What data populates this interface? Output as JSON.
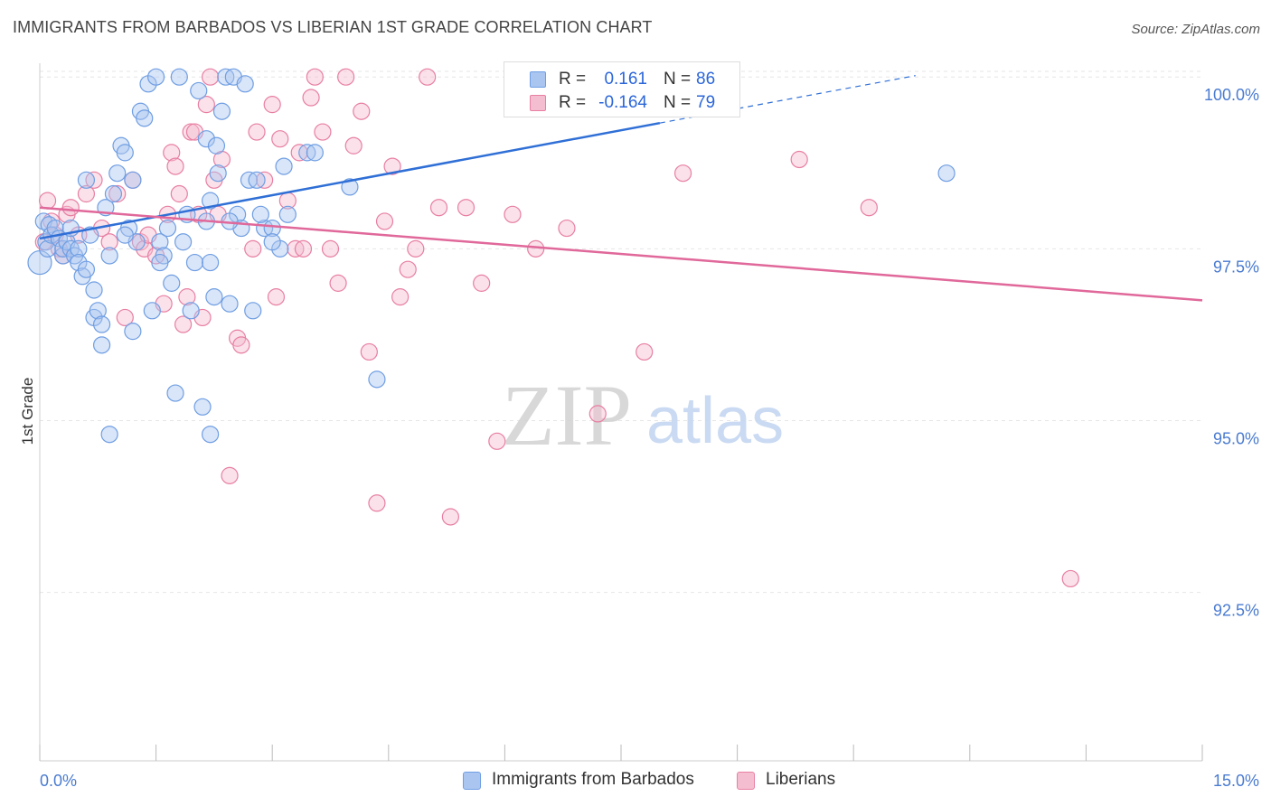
{
  "title": "IMMIGRANTS FROM BARBADOS VS LIBERIAN 1ST GRADE CORRELATION CHART",
  "source": "Source: ZipAtlas.com",
  "watermark": {
    "zip": "ZIP",
    "atlas": "atlas"
  },
  "legend": {
    "r_label": "R =",
    "n_label": "N =",
    "series": [
      {
        "name": "Immigrants from Barbados",
        "r": "0.161",
        "n": "86",
        "color": "#6f9ee3",
        "fill": "#aac6f0"
      },
      {
        "name": "Liberians",
        "r": "-0.164",
        "n": "79",
        "color": "#e87fa3",
        "fill": "#f5bdd0"
      }
    ]
  },
  "colors": {
    "blue_line": "#2f6fd6",
    "pink_line": "#e0689a",
    "axis_text": "#4a7bd0",
    "grid": "#e6e6e6"
  },
  "chart_data": {
    "type": "scatter",
    "title": "IMMIGRANTS FROM BARBADOS VS LIBERIAN 1ST GRADE CORRELATION CHART",
    "xlabel": "",
    "ylabel": "1st Grade",
    "xlim": [
      0,
      15
    ],
    "ylim": [
      90.05,
      100.2
    ],
    "x_tick_labels": [
      "0.0%",
      "15.0%"
    ],
    "y_ticks": [
      92.5,
      95.0,
      97.5,
      100.0
    ],
    "y_tick_labels": [
      "92.5%",
      "95.0%",
      "97.5%",
      "100.0%"
    ],
    "grid": "horizontal dashed",
    "series": [
      {
        "name": "Immigrants from Barbados",
        "trend": {
          "x": [
            0,
            8.0
          ],
          "y": [
            97.65,
            99.33
          ],
          "dashed_extension": {
            "x": [
              8.0,
              11.3
            ],
            "y": [
              99.33,
              100.02
            ]
          }
        },
        "points": [
          [
            0.0,
            97.3
          ],
          [
            0.05,
            97.9
          ],
          [
            0.08,
            97.6
          ],
          [
            0.1,
            97.5
          ],
          [
            0.12,
            97.85
          ],
          [
            0.15,
            97.7
          ],
          [
            0.2,
            97.8
          ],
          [
            0.25,
            97.65
          ],
          [
            0.3,
            97.4
          ],
          [
            0.3,
            97.5
          ],
          [
            0.35,
            97.6
          ],
          [
            0.4,
            97.5
          ],
          [
            0.4,
            97.8
          ],
          [
            0.45,
            97.4
          ],
          [
            0.5,
            97.5
          ],
          [
            0.5,
            97.3
          ],
          [
            0.55,
            97.1
          ],
          [
            0.6,
            97.2
          ],
          [
            0.6,
            98.5
          ],
          [
            0.65,
            97.7
          ],
          [
            0.7,
            96.5
          ],
          [
            0.75,
            96.6
          ],
          [
            0.8,
            96.1
          ],
          [
            0.8,
            96.4
          ],
          [
            0.85,
            98.1
          ],
          [
            0.9,
            97.4
          ],
          [
            0.95,
            98.3
          ],
          [
            1.0,
            98.6
          ],
          [
            1.05,
            99.0
          ],
          [
            1.1,
            98.9
          ],
          [
            1.15,
            97.8
          ],
          [
            1.2,
            96.3
          ],
          [
            1.25,
            97.6
          ],
          [
            1.3,
            99.5
          ],
          [
            1.35,
            99.4
          ],
          [
            1.4,
            99.9
          ],
          [
            1.45,
            96.6
          ],
          [
            1.5,
            100.0
          ],
          [
            1.55,
            97.6
          ],
          [
            1.6,
            97.4
          ],
          [
            1.65,
            97.8
          ],
          [
            1.7,
            97.0
          ],
          [
            1.75,
            95.4
          ],
          [
            1.8,
            100.0
          ],
          [
            1.85,
            97.6
          ],
          [
            1.9,
            98.0
          ],
          [
            1.95,
            96.6
          ],
          [
            2.0,
            97.3
          ],
          [
            2.05,
            99.8
          ],
          [
            2.1,
            95.2
          ],
          [
            2.15,
            99.1
          ],
          [
            2.2,
            97.3
          ],
          [
            2.25,
            96.8
          ],
          [
            2.3,
            98.6
          ],
          [
            2.35,
            99.5
          ],
          [
            2.4,
            100.0
          ],
          [
            2.45,
            96.7
          ],
          [
            2.5,
            100.0
          ],
          [
            2.55,
            98.0
          ],
          [
            2.6,
            97.8
          ],
          [
            2.65,
            99.9
          ],
          [
            2.7,
            98.5
          ],
          [
            2.75,
            96.6
          ],
          [
            2.8,
            98.5
          ],
          [
            2.9,
            97.8
          ],
          [
            3.0,
            97.8
          ],
          [
            3.1,
            97.5
          ],
          [
            3.15,
            98.7
          ],
          [
            3.2,
            98.0
          ],
          [
            2.45,
            97.9
          ],
          [
            3.0,
            97.6
          ],
          [
            2.15,
            97.9
          ],
          [
            2.2,
            94.8
          ],
          [
            1.2,
            98.5
          ],
          [
            1.1,
            97.7
          ],
          [
            0.9,
            94.8
          ],
          [
            0.7,
            96.9
          ],
          [
            1.55,
            97.3
          ],
          [
            2.2,
            98.2
          ],
          [
            2.28,
            99.0
          ],
          [
            3.45,
            98.9
          ],
          [
            3.55,
            98.9
          ],
          [
            2.85,
            98.0
          ],
          [
            4.0,
            98.4
          ],
          [
            4.35,
            95.6
          ],
          [
            11.7,
            98.6
          ]
        ]
      },
      {
        "name": "Liberians",
        "trend": {
          "x": [
            0,
            15.0
          ],
          "y": [
            98.1,
            96.75
          ]
        },
        "points": [
          [
            0.05,
            97.6
          ],
          [
            0.1,
            98.2
          ],
          [
            0.15,
            97.9
          ],
          [
            0.2,
            97.7
          ],
          [
            0.25,
            97.5
          ],
          [
            0.3,
            97.4
          ],
          [
            0.35,
            98.0
          ],
          [
            0.4,
            98.1
          ],
          [
            0.5,
            97.7
          ],
          [
            0.6,
            98.3
          ],
          [
            0.7,
            98.5
          ],
          [
            0.8,
            97.8
          ],
          [
            0.9,
            97.6
          ],
          [
            1.0,
            98.3
          ],
          [
            1.1,
            96.5
          ],
          [
            1.2,
            98.5
          ],
          [
            1.3,
            97.6
          ],
          [
            1.35,
            97.5
          ],
          [
            1.4,
            97.7
          ],
          [
            1.5,
            97.4
          ],
          [
            1.6,
            96.7
          ],
          [
            1.65,
            98.0
          ],
          [
            1.7,
            98.9
          ],
          [
            1.75,
            98.7
          ],
          [
            1.8,
            98.3
          ],
          [
            1.85,
            96.4
          ],
          [
            1.9,
            96.8
          ],
          [
            1.95,
            99.2
          ],
          [
            2.0,
            99.2
          ],
          [
            2.05,
            98.0
          ],
          [
            2.1,
            96.5
          ],
          [
            2.15,
            99.6
          ],
          [
            2.2,
            100.0
          ],
          [
            2.25,
            98.5
          ],
          [
            2.3,
            98.0
          ],
          [
            2.35,
            98.8
          ],
          [
            2.45,
            94.2
          ],
          [
            2.55,
            96.2
          ],
          [
            2.6,
            96.1
          ],
          [
            2.75,
            97.5
          ],
          [
            2.8,
            99.2
          ],
          [
            2.9,
            98.5
          ],
          [
            3.0,
            99.6
          ],
          [
            3.05,
            96.8
          ],
          [
            3.1,
            99.1
          ],
          [
            3.2,
            98.2
          ],
          [
            3.3,
            97.5
          ],
          [
            3.35,
            98.9
          ],
          [
            3.4,
            97.5
          ],
          [
            3.5,
            99.7
          ],
          [
            3.55,
            100.0
          ],
          [
            3.65,
            99.2
          ],
          [
            3.75,
            97.5
          ],
          [
            3.85,
            97.0
          ],
          [
            3.95,
            100.0
          ],
          [
            4.05,
            99.0
          ],
          [
            4.15,
            99.5
          ],
          [
            4.25,
            96.0
          ],
          [
            4.35,
            93.8
          ],
          [
            4.45,
            97.9
          ],
          [
            4.55,
            98.7
          ],
          [
            4.65,
            96.8
          ],
          [
            4.75,
            97.2
          ],
          [
            4.85,
            97.5
          ],
          [
            5.0,
            100.0
          ],
          [
            5.15,
            98.1
          ],
          [
            5.3,
            93.6
          ],
          [
            5.5,
            98.1
          ],
          [
            5.7,
            97.0
          ],
          [
            5.9,
            94.7
          ],
          [
            6.1,
            98.0
          ],
          [
            6.4,
            97.5
          ],
          [
            6.8,
            97.8
          ],
          [
            7.2,
            95.1
          ],
          [
            7.8,
            96.0
          ],
          [
            8.3,
            98.6
          ],
          [
            9.8,
            98.8
          ],
          [
            10.7,
            98.1
          ],
          [
            13.3,
            92.7
          ]
        ]
      }
    ]
  }
}
